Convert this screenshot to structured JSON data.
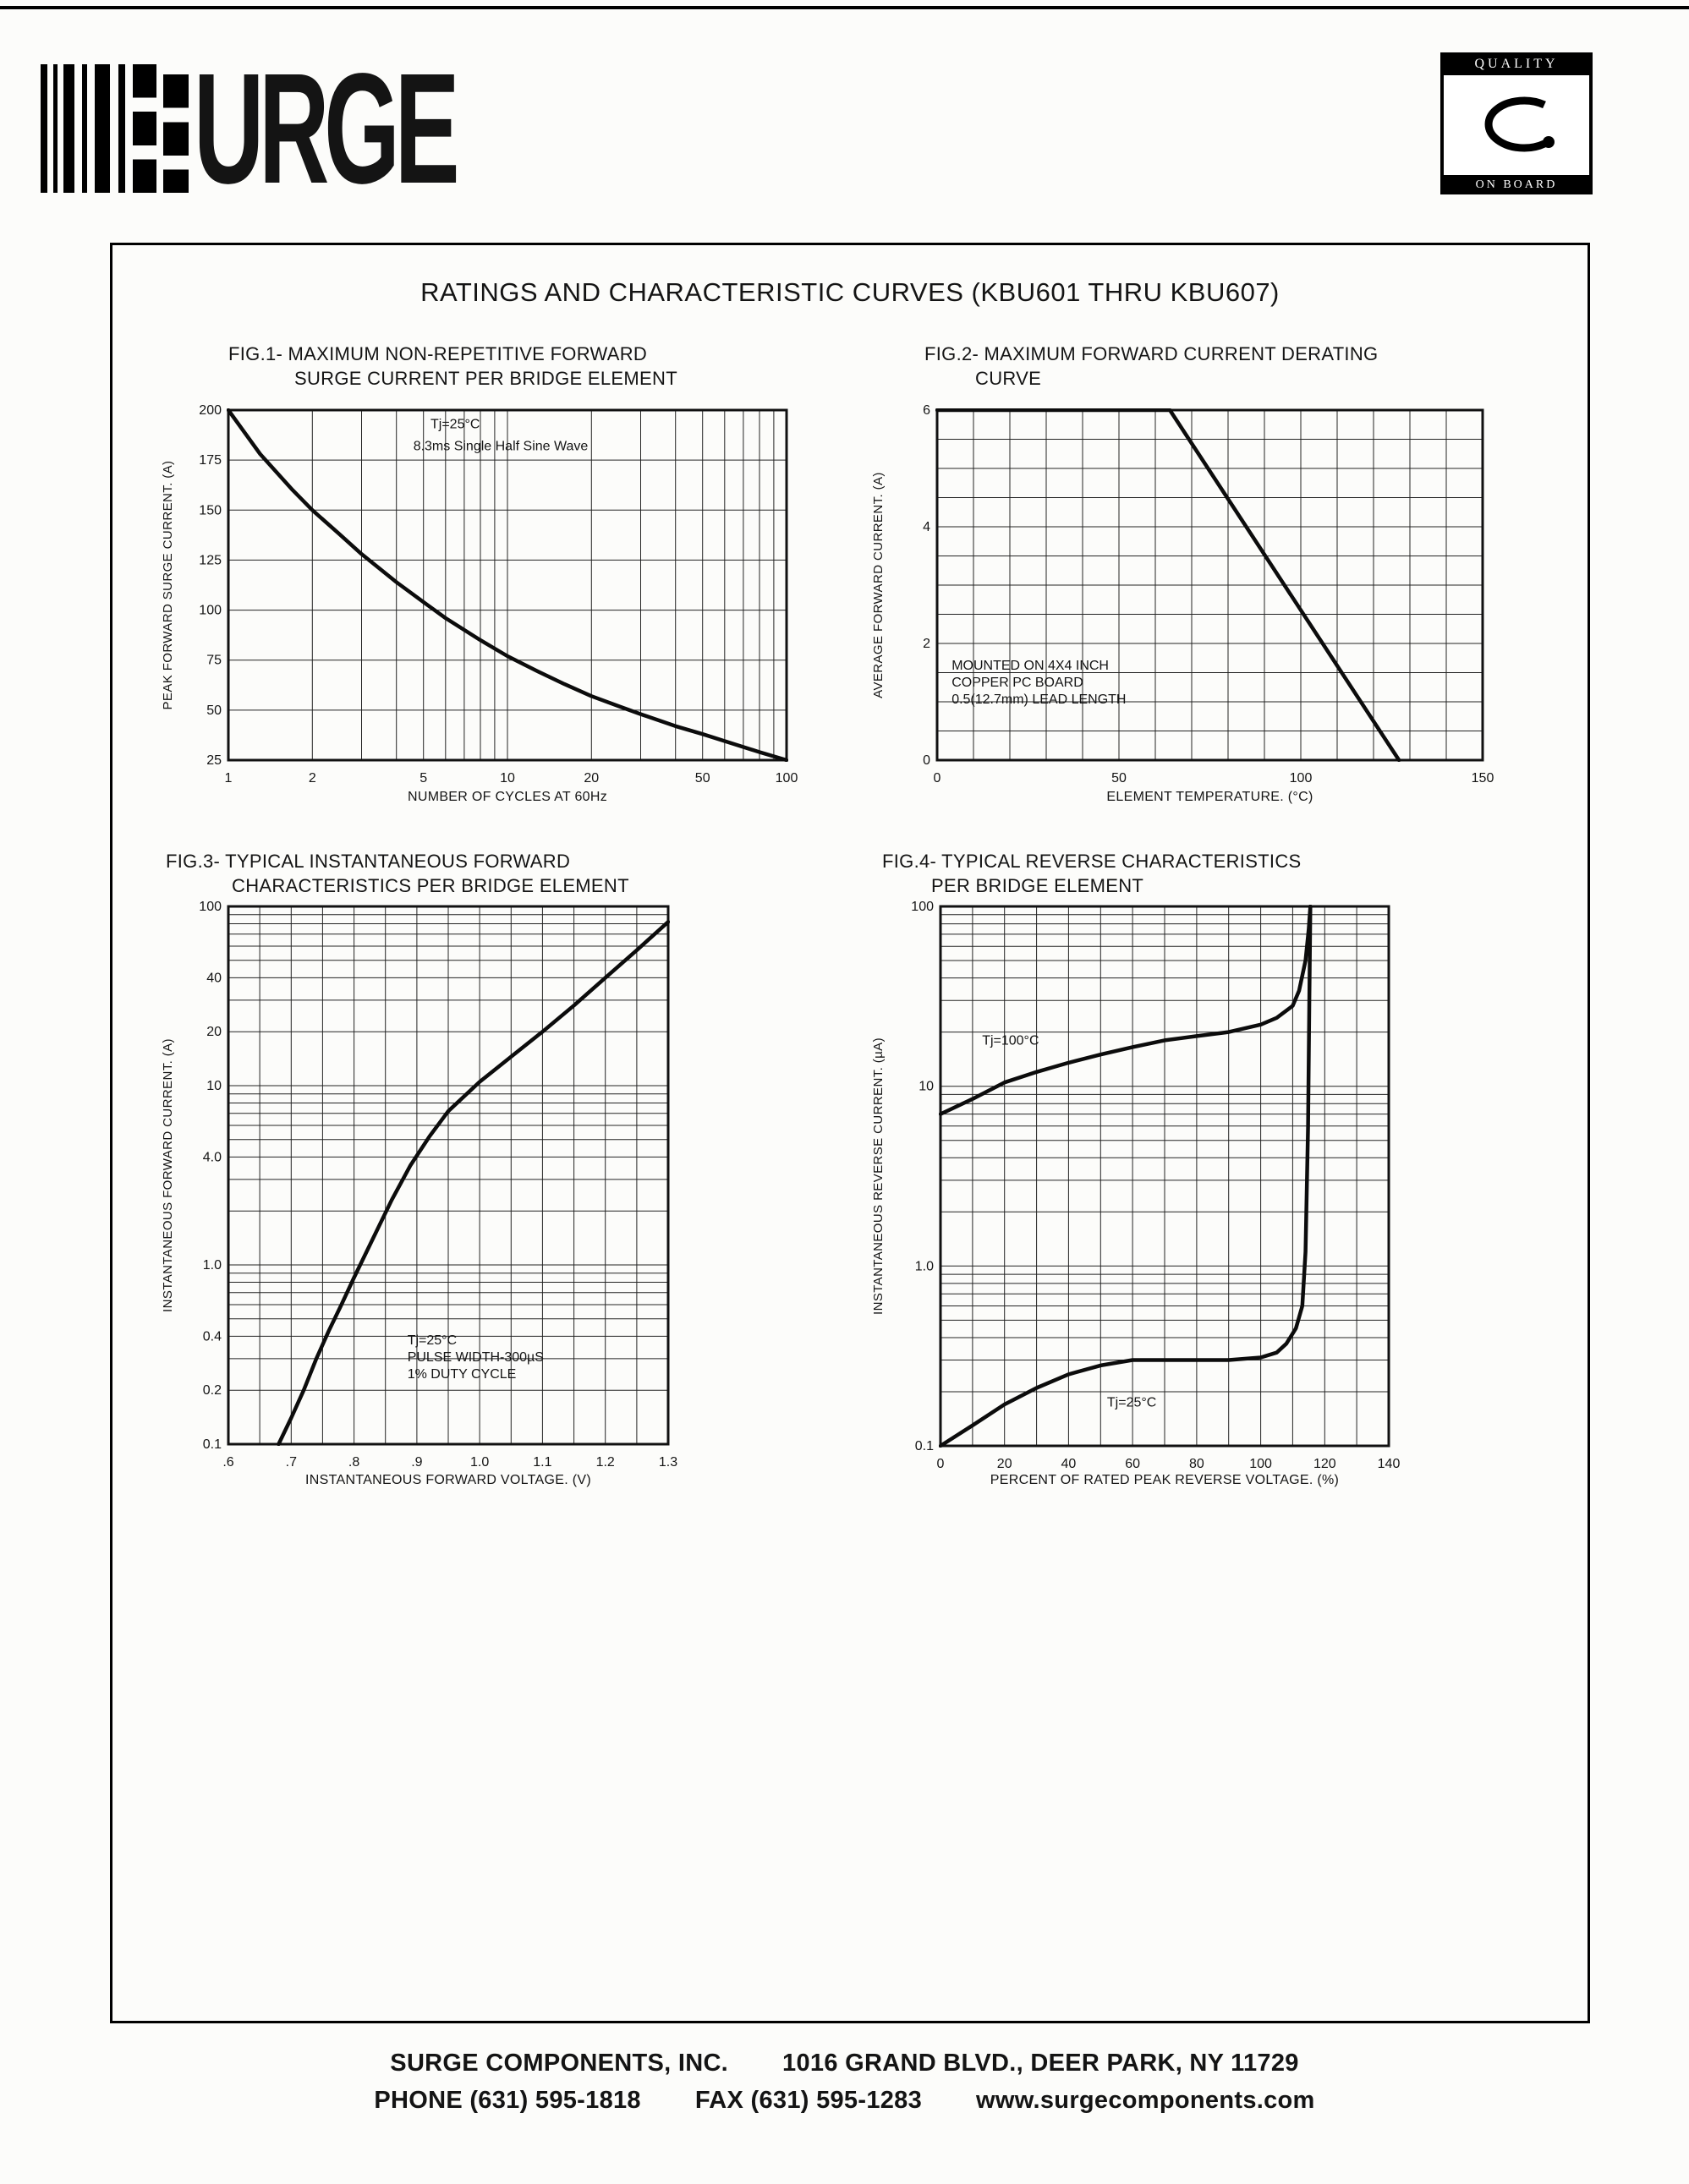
{
  "page": {
    "title": "RATINGS AND CHARACTERISTIC CURVES (KBU601 THRU KBU607)"
  },
  "logo": {
    "brand": "URGE",
    "badge_top": "QUALITY",
    "badge_bottom": "ON BOARD"
  },
  "footer": {
    "company": "SURGE COMPONENTS, INC.",
    "address": "1016 GRAND BLVD., DEER PARK, NY  11729",
    "phone": "PHONE (631) 595-1818",
    "fax": "FAX (631) 595-1283",
    "website": "www.surgecomponents.com"
  },
  "chart_data": [
    {
      "id": "fig1",
      "type": "line",
      "title_line1": "FIG.1- MAXIMUM NON-REPETITIVE FORWARD",
      "title_line2": "SURGE CURRENT PER BRIDGE ELEMENT",
      "xlabel": "NUMBER OF CYCLES AT 60Hz",
      "ylabel": "PEAK FORWARD SURGE CURRENT. (A)",
      "x_scale": "log",
      "y_scale": "linear",
      "xlim": [
        1,
        100
      ],
      "ylim": [
        25,
        200
      ],
      "x_grid": [
        1,
        2,
        3,
        4,
        5,
        6,
        7,
        8,
        9,
        10,
        20,
        30,
        40,
        50,
        60,
        70,
        80,
        90,
        100
      ],
      "y_grid": [
        25,
        50,
        75,
        100,
        125,
        150,
        175,
        200
      ],
      "x_ticks": [
        {
          "v": 1,
          "label": "1"
        },
        {
          "v": 2,
          "label": "2"
        },
        {
          "v": 5,
          "label": "5"
        },
        {
          "v": 10,
          "label": "10"
        },
        {
          "v": 20,
          "label": "20"
        },
        {
          "v": 50,
          "label": "50"
        },
        {
          "v": 100,
          "label": "100"
        }
      ],
      "y_ticks": [
        {
          "v": 200,
          "label": "200"
        },
        {
          "v": 175,
          "label": "175"
        },
        {
          "v": 150,
          "label": "150"
        },
        {
          "v": 125,
          "label": "125"
        },
        {
          "v": 100,
          "label": "100"
        },
        {
          "v": 75,
          "label": "75"
        },
        {
          "v": 50,
          "label": "50"
        },
        {
          "v": 25,
          "label": "25"
        }
      ],
      "annotations": [
        {
          "x": 5.3,
          "y": 191,
          "lines": [
            "Tj=25°C"
          ]
        },
        {
          "x": 4.6,
          "y": 180,
          "lines": [
            "8.3ms Single Half Sine Wave"
          ]
        }
      ],
      "series": [
        {
          "name": "peak-surge-current",
          "points": [
            [
              1,
              200
            ],
            [
              1.3,
              178
            ],
            [
              1.7,
              160
            ],
            [
              2,
              150
            ],
            [
              2.5,
              138
            ],
            [
              3,
              128
            ],
            [
              4,
              114
            ],
            [
              5,
              104
            ],
            [
              6,
              96
            ],
            [
              8,
              85
            ],
            [
              10,
              77
            ],
            [
              13,
              69
            ],
            [
              16,
              63
            ],
            [
              20,
              57
            ],
            [
              25,
              52
            ],
            [
              30,
              48
            ],
            [
              40,
              42
            ],
            [
              50,
              38
            ],
            [
              65,
              33
            ],
            [
              80,
              29
            ],
            [
              100,
              25
            ]
          ]
        }
      ]
    },
    {
      "id": "fig2",
      "type": "line",
      "title_line1": "FIG.2- MAXIMUM FORWARD CURRENT DERATING",
      "title_line2": "CURVE",
      "xlabel": "ELEMENT TEMPERATURE. (°C)",
      "ylabel": "AVERAGE FORWARD CURRENT. (A)",
      "x_scale": "linear",
      "y_scale": "linear",
      "xlim": [
        0,
        150
      ],
      "ylim": [
        0,
        6
      ],
      "x_grid": [
        0,
        10,
        20,
        30,
        40,
        50,
        60,
        70,
        80,
        90,
        100,
        110,
        120,
        130,
        140,
        150
      ],
      "y_grid": [
        0,
        0.5,
        1,
        1.5,
        2,
        2.5,
        3,
        3.5,
        4,
        4.5,
        5,
        5.5,
        6
      ],
      "x_ticks": [
        {
          "v": 0,
          "label": "0"
        },
        {
          "v": 50,
          "label": "50"
        },
        {
          "v": 100,
          "label": "100"
        },
        {
          "v": 150,
          "label": "150"
        }
      ],
      "y_ticks": [
        {
          "v": 6,
          "label": "6"
        },
        {
          "v": 4,
          "label": "4"
        },
        {
          "v": 2,
          "label": "2"
        },
        {
          "v": 0,
          "label": "0"
        }
      ],
      "annotations": [
        {
          "x": 4,
          "y": 1.55,
          "lines": [
            "MOUNTED ON 4X4 INCH",
            "COPPER PC BOARD",
            "0.5(12.7mm) LEAD LENGTH"
          ]
        }
      ],
      "series": [
        {
          "name": "derating-curve",
          "points": [
            [
              0,
              6
            ],
            [
              64,
              6
            ],
            [
              127,
              0
            ]
          ]
        }
      ]
    },
    {
      "id": "fig3",
      "type": "line",
      "title_line1": "FIG.3- TYPICAL INSTANTANEOUS FORWARD",
      "title_line2": "CHARACTERISTICS PER BRIDGE ELEMENT",
      "xlabel": "INSTANTANEOUS FORWARD VOLTAGE. (V)",
      "ylabel": "INSTANTANEOUS FORWARD CURRENT. (A)",
      "x_scale": "linear",
      "y_scale": "log",
      "xlim": [
        0.6,
        1.3
      ],
      "ylim": [
        0.1,
        100
      ],
      "x_grid": [
        0.6,
        0.65,
        0.7,
        0.75,
        0.8,
        0.85,
        0.9,
        0.95,
        1.0,
        1.05,
        1.1,
        1.15,
        1.2,
        1.25,
        1.3
      ],
      "y_grid": [
        0.1,
        0.2,
        0.3,
        0.4,
        0.5,
        0.6,
        0.7,
        0.8,
        0.9,
        1,
        2,
        3,
        4,
        5,
        6,
        7,
        8,
        9,
        10,
        20,
        30,
        40,
        50,
        60,
        70,
        80,
        90,
        100
      ],
      "x_ticks": [
        {
          "v": 0.6,
          "label": ".6"
        },
        {
          "v": 0.7,
          "label": ".7"
        },
        {
          "v": 0.8,
          "label": ".8"
        },
        {
          "v": 0.9,
          "label": ".9"
        },
        {
          "v": 1.0,
          "label": "1.0"
        },
        {
          "v": 1.1,
          "label": "1.1"
        },
        {
          "v": 1.2,
          "label": "1.2"
        },
        {
          "v": 1.3,
          "label": "1.3"
        }
      ],
      "y_ticks": [
        {
          "v": 100,
          "label": "100"
        },
        {
          "v": 40,
          "label": "40"
        },
        {
          "v": 20,
          "label": "20"
        },
        {
          "v": 10,
          "label": "10"
        },
        {
          "v": 4,
          "label": "4.0"
        },
        {
          "v": 1,
          "label": "1.0"
        },
        {
          "v": 0.4,
          "label": "0.4"
        },
        {
          "v": 0.2,
          "label": "0.2"
        },
        {
          "v": 0.1,
          "label": "0.1"
        }
      ],
      "annotations": [
        {
          "x": 0.885,
          "y": 0.36,
          "lines": [
            "Tj=25°C",
            "PULSE WIDTH-300µS",
            "1% DUTY CYCLE"
          ]
        }
      ],
      "series": [
        {
          "name": "forward-characteristic",
          "points": [
            [
              0.68,
              0.1
            ],
            [
              0.7,
              0.14
            ],
            [
              0.72,
              0.2
            ],
            [
              0.74,
              0.3
            ],
            [
              0.76,
              0.43
            ],
            [
              0.78,
              0.6
            ],
            [
              0.8,
              0.85
            ],
            [
              0.83,
              1.4
            ],
            [
              0.86,
              2.3
            ],
            [
              0.89,
              3.6
            ],
            [
              0.92,
              5.2
            ],
            [
              0.95,
              7.2
            ],
            [
              1.0,
              10.5
            ],
            [
              1.05,
              14.5
            ],
            [
              1.1,
              20
            ],
            [
              1.15,
              28
            ],
            [
              1.2,
              40
            ],
            [
              1.25,
              57
            ],
            [
              1.3,
              82
            ]
          ]
        }
      ]
    },
    {
      "id": "fig4",
      "type": "line",
      "title_line1": "FIG.4- TYPICAL REVERSE CHARACTERISTICS",
      "title_line2": "PER BRIDGE ELEMENT",
      "xlabel": "PERCENT OF RATED PEAK REVERSE VOLTAGE. (%)",
      "ylabel": "INSTANTANEOUS REVERSE CURRENT. (µA)",
      "x_scale": "linear",
      "y_scale": "log",
      "xlim": [
        0,
        140
      ],
      "ylim": [
        0.1,
        100
      ],
      "x_grid": [
        0,
        10,
        20,
        30,
        40,
        50,
        60,
        70,
        80,
        90,
        100,
        110,
        120,
        130,
        140
      ],
      "y_grid": [
        0.1,
        0.2,
        0.3,
        0.4,
        0.5,
        0.6,
        0.7,
        0.8,
        0.9,
        1,
        2,
        3,
        4,
        5,
        6,
        7,
        8,
        9,
        10,
        20,
        30,
        40,
        50,
        60,
        70,
        80,
        90,
        100
      ],
      "x_ticks": [
        {
          "v": 0,
          "label": "0"
        },
        {
          "v": 20,
          "label": "20"
        },
        {
          "v": 40,
          "label": "40"
        },
        {
          "v": 60,
          "label": "60"
        },
        {
          "v": 80,
          "label": "80"
        },
        {
          "v": 100,
          "label": "100"
        },
        {
          "v": 120,
          "label": "120"
        },
        {
          "v": 140,
          "label": "140"
        }
      ],
      "y_ticks": [
        {
          "v": 100,
          "label": "100"
        },
        {
          "v": 10,
          "label": "10"
        },
        {
          "v": 1,
          "label": "1.0"
        },
        {
          "v": 0.1,
          "label": "0.1"
        }
      ],
      "annotations": [
        {
          "x": 13,
          "y": 17,
          "lines": [
            "Tj=100°C"
          ]
        },
        {
          "x": 52,
          "y": 0.165,
          "lines": [
            "Tj=25°C"
          ]
        }
      ],
      "series": [
        {
          "name": "Tj=100°C",
          "points": [
            [
              0,
              7
            ],
            [
              10,
              8.5
            ],
            [
              20,
              10.5
            ],
            [
              30,
              12
            ],
            [
              40,
              13.5
            ],
            [
              50,
              15
            ],
            [
              60,
              16.5
            ],
            [
              70,
              18
            ],
            [
              80,
              19
            ],
            [
              90,
              20
            ],
            [
              100,
              22
            ],
            [
              105,
              24
            ],
            [
              110,
              28
            ],
            [
              112,
              34
            ],
            [
              114,
              50
            ],
            [
              115,
              75
            ],
            [
              115.5,
              100
            ]
          ]
        },
        {
          "name": "Tj=25°C",
          "points": [
            [
              0,
              0.1
            ],
            [
              10,
              0.13
            ],
            [
              20,
              0.17
            ],
            [
              30,
              0.21
            ],
            [
              40,
              0.25
            ],
            [
              50,
              0.28
            ],
            [
              60,
              0.3
            ],
            [
              75,
              0.3
            ],
            [
              90,
              0.3
            ],
            [
              100,
              0.31
            ],
            [
              105,
              0.33
            ],
            [
              108,
              0.37
            ],
            [
              111,
              0.45
            ],
            [
              113,
              0.6
            ],
            [
              114,
              1.2
            ],
            [
              114.8,
              6
            ],
            [
              115.2,
              30
            ],
            [
              115.5,
              100
            ]
          ]
        }
      ]
    }
  ]
}
